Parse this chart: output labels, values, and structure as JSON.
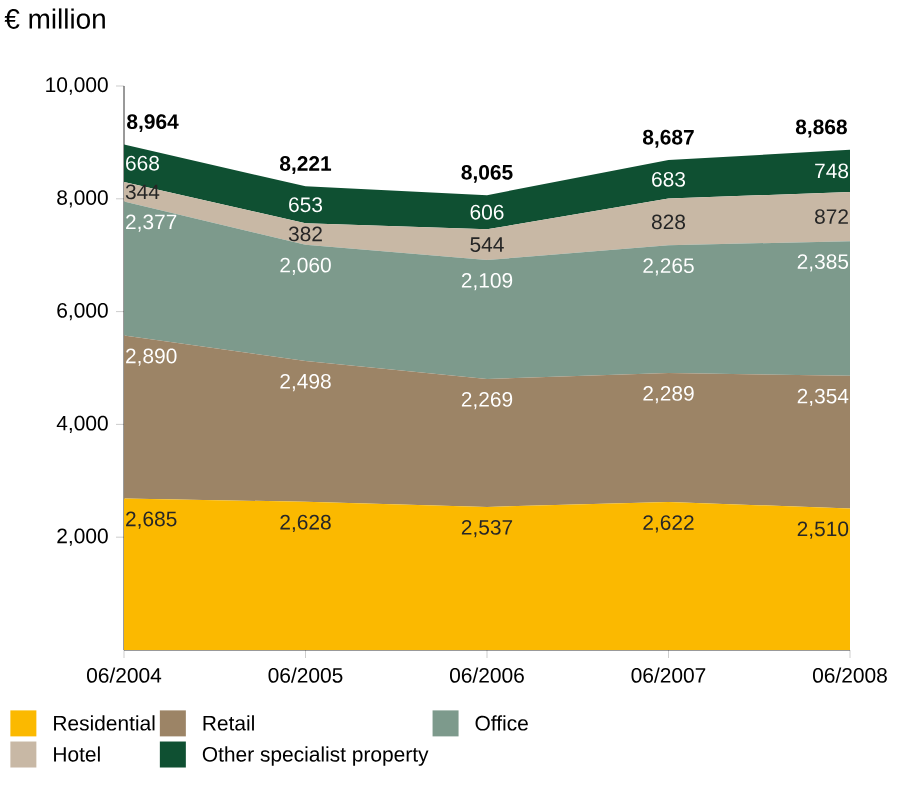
{
  "chart_data": {
    "type": "area",
    "stacked": true,
    "ylabel": "€ million",
    "categories": [
      "06/2004",
      "06/2005",
      "06/2006",
      "06/2007",
      "06/2008"
    ],
    "series": [
      {
        "name": "Residential",
        "color": "#fbb900",
        "values": [
          2685,
          2628,
          2537,
          2622,
          2510
        ],
        "value_labels": [
          "2,685",
          "2,628",
          "2,537",
          "2,622",
          "2,510"
        ]
      },
      {
        "name": "Retail",
        "color": "#9c8466",
        "values": [
          2890,
          2498,
          2269,
          2289,
          2354
        ],
        "value_labels": [
          "2,890",
          "2,498",
          "2,269",
          "2,289",
          "2,354"
        ]
      },
      {
        "name": "Office",
        "color": "#7d9a8c",
        "values": [
          2377,
          2060,
          2109,
          2265,
          2385
        ],
        "value_labels": [
          "2,377",
          "2,060",
          "2,109",
          "2,265",
          "2,385"
        ]
      },
      {
        "name": "Hotel",
        "color": "#c8b8a5",
        "values": [
          344,
          382,
          544,
          828,
          872
        ],
        "value_labels": [
          "344",
          "382",
          "544",
          "828",
          "872"
        ]
      },
      {
        "name": "Other specialist property",
        "color": "#0f5032",
        "values": [
          668,
          653,
          606,
          683,
          748
        ],
        "value_labels": [
          "668",
          "653",
          "606",
          "683",
          "748"
        ]
      }
    ],
    "totals": [
      "8,964",
      "8,221",
      "8,065",
      "8,687",
      "8,868"
    ],
    "ylim": [
      0,
      10000
    ],
    "yticks": [
      {
        "value": 2000,
        "label": "2,000"
      },
      {
        "value": 4000,
        "label": "4,000"
      },
      {
        "value": 6000,
        "label": "6,000"
      },
      {
        "value": 8000,
        "label": "8,000"
      },
      {
        "value": 10000,
        "label": "10,000"
      }
    ],
    "legend": "bottom"
  }
}
